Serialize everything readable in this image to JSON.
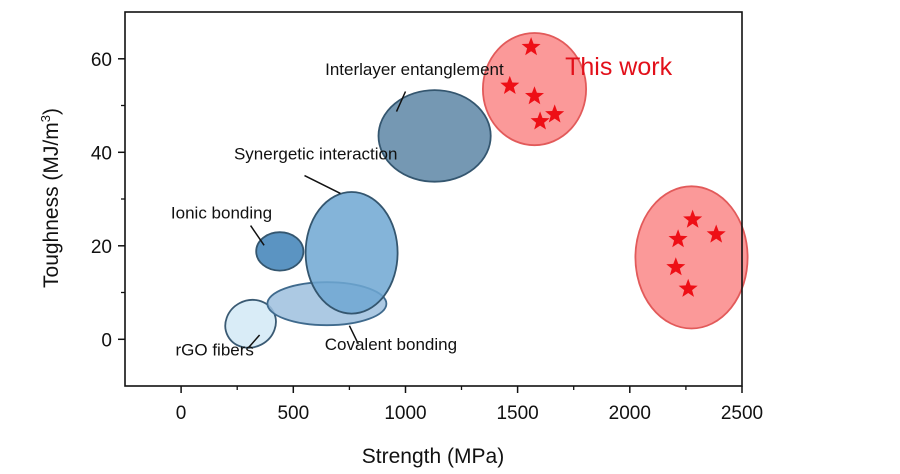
{
  "chart_data": {
    "type": "scatter",
    "title": "",
    "xlabel": "Strength (MPa)",
    "ylabel_main": "Toughness (MJ/m",
    "ylabel_sup": "3",
    "ylabel_close": ")",
    "xlim": [
      -250,
      2500
    ],
    "ylim": [
      -10,
      70
    ],
    "xticks": [
      0,
      500,
      1000,
      1500,
      2000,
      2500
    ],
    "yticks": [
      0,
      20,
      40,
      60
    ],
    "xtick_labels": [
      "0",
      "500",
      "1000",
      "1500",
      "2000",
      "2500"
    ],
    "ytick_labels": [
      "0",
      "20",
      "40",
      "60"
    ],
    "regions": [
      {
        "name": "rGO fibers",
        "cx": 310,
        "cy": 3.3,
        "rx": 115,
        "ry": 5.0,
        "angle": 28,
        "fill": "#d9ecf7",
        "stroke": "#3a5a73",
        "opacity": 1.0
      },
      {
        "name": "Covalent bonding",
        "cx": 650,
        "cy": 7.6,
        "rx": 265,
        "ry": 4.6,
        "angle": 0,
        "fill": "#9ec0de",
        "stroke": "#3f6a8d",
        "opacity": 0.85
      },
      {
        "name": "Ionic bonding",
        "cx": 440,
        "cy": 18.8,
        "rx": 105,
        "ry": 4.1,
        "angle": 0,
        "fill": "#5b94c2",
        "stroke": "#34566f",
        "opacity": 1.0
      },
      {
        "name": "Synergetic interaction",
        "cx": 760,
        "cy": 18.5,
        "rx": 205,
        "ry": 13.0,
        "angle": 0,
        "fill": "#6fa7d2",
        "stroke": "#34566f",
        "opacity": 0.85
      },
      {
        "name": "Interlayer entanglement",
        "cx": 1130,
        "cy": 43.5,
        "rx": 250,
        "ry": 9.8,
        "angle": 0,
        "fill": "#5d86a6",
        "stroke": "#34566f",
        "opacity": 0.85
      },
      {
        "name": "This work",
        "cx": 1575,
        "cy": 53.5,
        "rx": 230,
        "ry": 12.0,
        "angle": 0,
        "fill": "#fa8080",
        "stroke": "#e25a5a",
        "opacity": 0.8
      },
      {
        "name": "This work",
        "cx": 2275,
        "cy": 17.5,
        "rx": 250,
        "ry": 15.2,
        "angle": 0,
        "fill": "#fa8080",
        "stroke": "#e25a5a",
        "opacity": 0.8
      }
    ],
    "series": [
      {
        "name": "This work",
        "marker": "star",
        "color": "#ee0f16",
        "points": [
          [
            1560,
            62.5
          ],
          [
            1465,
            54.2
          ],
          [
            1575,
            52.0
          ],
          [
            1665,
            48.1
          ],
          [
            1600,
            46.6
          ],
          [
            2280,
            25.6
          ],
          [
            2385,
            22.4
          ],
          [
            2215,
            21.4
          ],
          [
            2205,
            15.4
          ],
          [
            2260,
            10.8
          ]
        ]
      }
    ],
    "annotations": [
      {
        "text": "Interlayer entanglement",
        "at": [
          1040,
          56.5
        ],
        "anchor": "middle",
        "leader": [
          [
            1000,
            53.0
          ],
          [
            960,
            48.7
          ]
        ]
      },
      {
        "text": "Synergetic interaction",
        "at": [
          600,
          38.5
        ],
        "anchor": "middle",
        "leader": [
          [
            550,
            35.0
          ],
          [
            710,
            31.2
          ]
        ]
      },
      {
        "text": "Ionic bonding",
        "at": [
          180,
          25.8
        ],
        "anchor": "middle",
        "leader": [
          [
            310,
            24.3
          ],
          [
            370,
            20.1
          ]
        ]
      },
      {
        "text": "rGO fibers",
        "at": [
          150,
          -3.5
        ],
        "anchor": "middle",
        "leader": [
          [
            300,
            -1.8
          ],
          [
            350,
            0.9
          ]
        ]
      },
      {
        "text": "Covalent bonding",
        "at": [
          935,
          -2.3
        ],
        "anchor": "middle",
        "leader": [
          [
            790,
            -1.0
          ],
          [
            750,
            2.9
          ]
        ]
      }
    ],
    "highlight_label": {
      "text": "This work",
      "at": [
        1950,
        56.5
      ],
      "color": "#e2101a"
    }
  }
}
